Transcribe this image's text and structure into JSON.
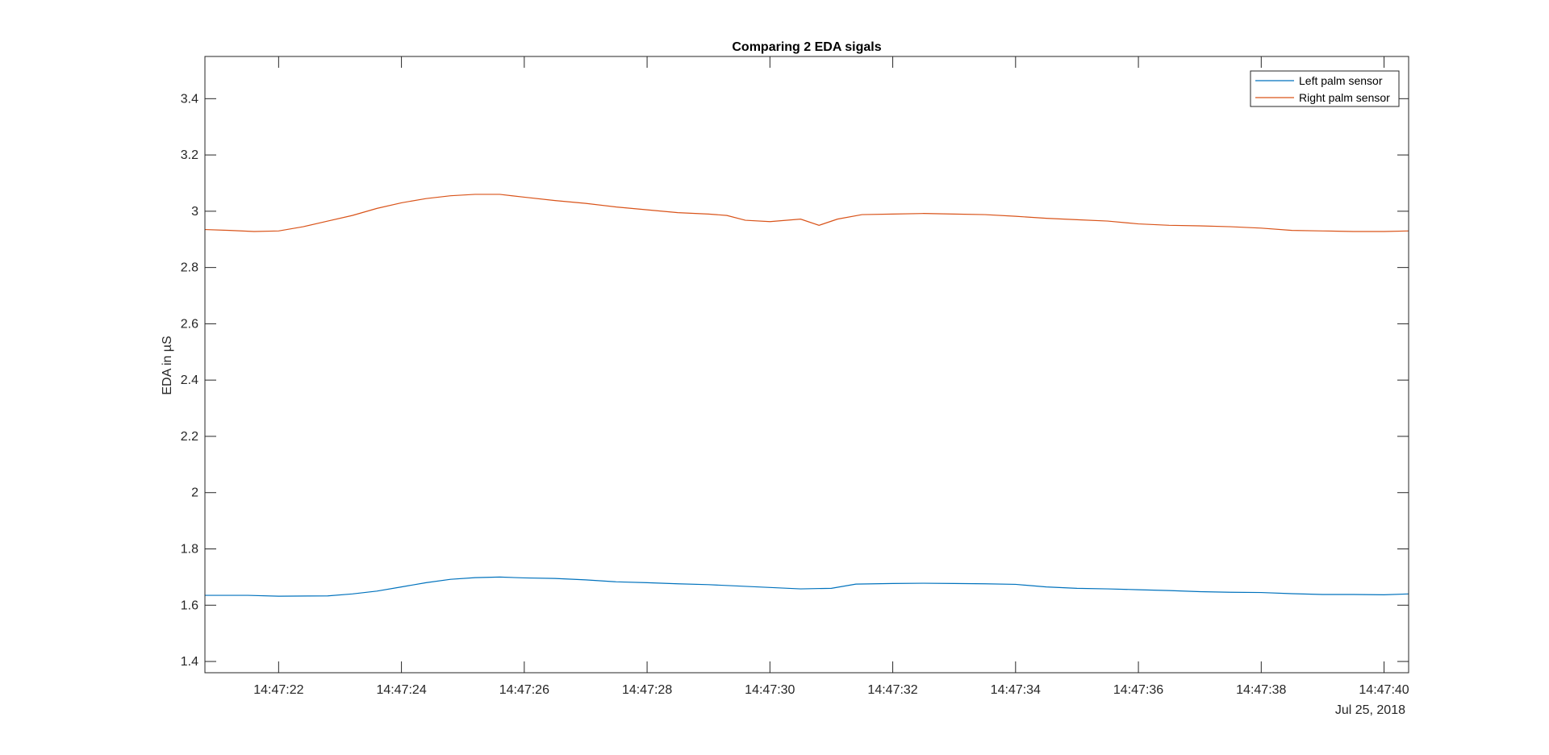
{
  "chart_data": {
    "type": "line",
    "title": "Comparing 2 EDA sigals",
    "xlabel": "",
    "ylabel": "EDA in µS",
    "date_label": "Jul 25, 2018",
    "x_unit": "time (hh:mm:ss)",
    "xlim": [
      "14:47:20.8",
      "14:47:40.4"
    ],
    "ylim": [
      1.36,
      3.55
    ],
    "x_ticks": [
      "14:47:22",
      "14:47:24",
      "14:47:26",
      "14:47:28",
      "14:47:30",
      "14:47:32",
      "14:47:34",
      "14:47:36",
      "14:47:38",
      "14:47:40"
    ],
    "y_ticks": [
      "1.4",
      "1.6",
      "1.8",
      "2",
      "2.2",
      "2.4",
      "2.6",
      "2.8",
      "3",
      "3.2",
      "3.4"
    ],
    "grid": false,
    "legend_position": "top-right",
    "series": [
      {
        "name": "Left palm sensor",
        "color": "#0072BD",
        "points": [
          [
            "14:47:20.8",
            1.635
          ],
          [
            "14:47:21.5",
            1.635
          ],
          [
            "14:47:22.0",
            1.632
          ],
          [
            "14:47:22.8",
            1.633
          ],
          [
            "14:47:23.2",
            1.64
          ],
          [
            "14:47:23.6",
            1.65
          ],
          [
            "14:47:24.0",
            1.665
          ],
          [
            "14:47:24.4",
            1.68
          ],
          [
            "14:47:24.8",
            1.692
          ],
          [
            "14:47:25.2",
            1.698
          ],
          [
            "14:47:25.6",
            1.7
          ],
          [
            "14:47:26.0",
            1.697
          ],
          [
            "14:47:26.5",
            1.695
          ],
          [
            "14:47:27.0",
            1.69
          ],
          [
            "14:47:27.5",
            1.683
          ],
          [
            "14:47:28.0",
            1.68
          ],
          [
            "14:47:28.5",
            1.676
          ],
          [
            "14:47:29.0",
            1.673
          ],
          [
            "14:47:29.5",
            1.668
          ],
          [
            "14:47:30.0",
            1.663
          ],
          [
            "14:47:30.5",
            1.658
          ],
          [
            "14:47:31.0",
            1.66
          ],
          [
            "14:47:31.4",
            1.675
          ],
          [
            "14:47:32.0",
            1.677
          ],
          [
            "14:47:32.5",
            1.678
          ],
          [
            "14:47:33.0",
            1.677
          ],
          [
            "14:47:33.5",
            1.676
          ],
          [
            "14:47:34.0",
            1.674
          ],
          [
            "14:47:34.5",
            1.665
          ],
          [
            "14:47:35.0",
            1.66
          ],
          [
            "14:47:35.5",
            1.658
          ],
          [
            "14:47:36.0",
            1.655
          ],
          [
            "14:47:36.5",
            1.652
          ],
          [
            "14:47:37.0",
            1.648
          ],
          [
            "14:47:37.5",
            1.646
          ],
          [
            "14:47:38.0",
            1.645
          ],
          [
            "14:47:38.5",
            1.641
          ],
          [
            "14:47:39.0",
            1.638
          ],
          [
            "14:47:39.5",
            1.638
          ],
          [
            "14:47:40.0",
            1.637
          ],
          [
            "14:47:40.4",
            1.64
          ]
        ]
      },
      {
        "name": "Right palm sensor",
        "color": "#D95319",
        "points": [
          [
            "14:47:20.8",
            2.935
          ],
          [
            "14:47:21.2",
            2.932
          ],
          [
            "14:47:21.6",
            2.928
          ],
          [
            "14:47:22.0",
            2.93
          ],
          [
            "14:47:22.4",
            2.945
          ],
          [
            "14:47:22.8",
            2.965
          ],
          [
            "14:47:23.2",
            2.985
          ],
          [
            "14:47:23.6",
            3.01
          ],
          [
            "14:47:24.0",
            3.03
          ],
          [
            "14:47:24.4",
            3.045
          ],
          [
            "14:47:24.8",
            3.055
          ],
          [
            "14:47:25.2",
            3.06
          ],
          [
            "14:47:25.6",
            3.06
          ],
          [
            "14:47:26.0",
            3.05
          ],
          [
            "14:47:26.5",
            3.038
          ],
          [
            "14:47:27.0",
            3.028
          ],
          [
            "14:47:27.5",
            3.015
          ],
          [
            "14:47:28.0",
            3.005
          ],
          [
            "14:47:28.5",
            2.995
          ],
          [
            "14:47:29.0",
            2.99
          ],
          [
            "14:47:29.3",
            2.985
          ],
          [
            "14:47:29.6",
            2.968
          ],
          [
            "14:47:30.0",
            2.963
          ],
          [
            "14:47:30.5",
            2.972
          ],
          [
            "14:47:30.8",
            2.95
          ],
          [
            "14:47:31.1",
            2.972
          ],
          [
            "14:47:31.5",
            2.988
          ],
          [
            "14:47:32.0",
            2.99
          ],
          [
            "14:47:32.5",
            2.992
          ],
          [
            "14:47:33.0",
            2.99
          ],
          [
            "14:47:33.5",
            2.988
          ],
          [
            "14:47:34.0",
            2.982
          ],
          [
            "14:47:34.5",
            2.975
          ],
          [
            "14:47:35.0",
            2.97
          ],
          [
            "14:47:35.5",
            2.965
          ],
          [
            "14:47:36.0",
            2.955
          ],
          [
            "14:47:36.5",
            2.95
          ],
          [
            "14:47:37.0",
            2.948
          ],
          [
            "14:47:37.5",
            2.945
          ],
          [
            "14:47:38.0",
            2.94
          ],
          [
            "14:47:38.5",
            2.932
          ],
          [
            "14:47:39.0",
            2.93
          ],
          [
            "14:47:39.5",
            2.928
          ],
          [
            "14:47:40.0",
            2.928
          ],
          [
            "14:47:40.4",
            2.93
          ]
        ]
      }
    ]
  }
}
